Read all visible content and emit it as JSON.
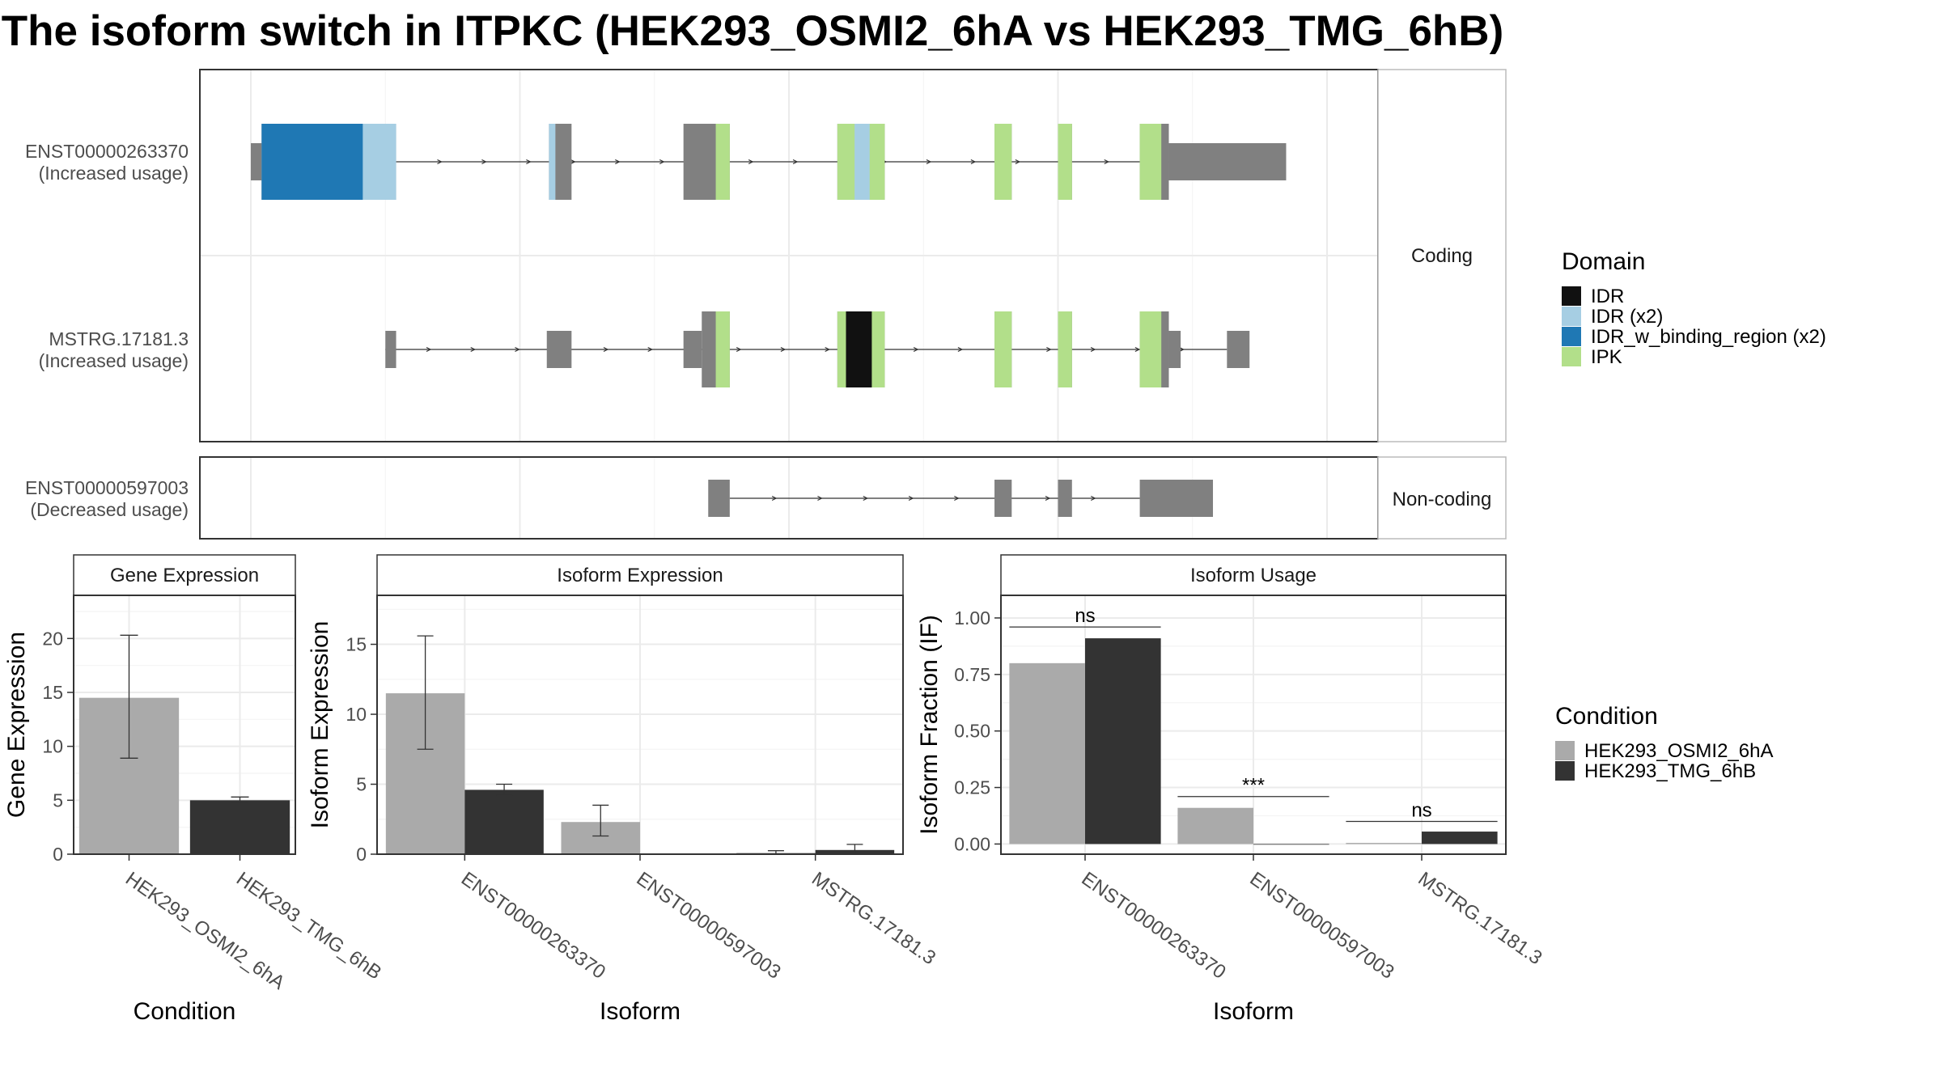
{
  "title": "The isoform switch in ITPKC (HEK293_OSMI2_6hA vs HEK293_TMG_6hB)",
  "colors": {
    "exon_grey": "#808080",
    "IDR": "#111111",
    "IDR (x2)": "#A6CEE3",
    "IDR_w_binding_region (x2)": "#1F78B4",
    "IPK": "#B2DF8A",
    "cond1": "#AAAAAA",
    "cond2": "#333333"
  },
  "legend_domain": {
    "title": "Domain",
    "items": [
      {
        "label": "IDR",
        "color": "#111111"
      },
      {
        "label": "IDR (x2)",
        "color": "#A6CEE3"
      },
      {
        "label": "IDR_w_binding_region (x2)",
        "color": "#1F78B4"
      },
      {
        "label": "IPK",
        "color": "#B2DF8A"
      }
    ]
  },
  "legend_condition": {
    "title": "Condition",
    "items": [
      {
        "label": "HEK293_OSMI2_6hA",
        "color": "#AAAAAA"
      },
      {
        "label": "HEK293_TMG_6hB",
        "color": "#333333"
      }
    ]
  },
  "chart_data": [
    {
      "type": "gene-structure",
      "strips": [
        "Coding",
        "Non-coding"
      ],
      "genomic_axis": [
        0,
        100
      ],
      "transcripts": [
        {
          "id": "ENST00000263370",
          "usage": "(Increased usage)",
          "facet": "Coding",
          "introns": [
            [
              13.5,
              92.0
            ]
          ],
          "exons": [
            {
              "start": 0.0,
              "end": 1.0,
              "cds": false
            },
            {
              "start": 1.0,
              "end": 13.5,
              "cds": true
            },
            {
              "start": 27.7,
              "end": 29.8,
              "cds": true
            },
            {
              "start": 40.2,
              "end": 44.5,
              "cds": true
            },
            {
              "start": 54.5,
              "end": 58.9,
              "cds": true
            },
            {
              "start": 69.1,
              "end": 70.7,
              "cds": true
            },
            {
              "start": 75.0,
              "end": 76.3,
              "cds": true
            },
            {
              "start": 82.6,
              "end": 85.3,
              "cds": true
            },
            {
              "start": 85.3,
              "end": 96.2,
              "cds": false
            }
          ],
          "domains": [
            {
              "start": 1.0,
              "end": 12.8,
              "type": "IDR_w_binding_region (x2)"
            },
            {
              "start": 10.4,
              "end": 13.5,
              "type": "IDR (x2)"
            },
            {
              "start": 27.7,
              "end": 28.3,
              "type": "IDR (x2)"
            },
            {
              "start": 43.2,
              "end": 44.5,
              "type": "IPK"
            },
            {
              "start": 54.5,
              "end": 58.9,
              "type": "IPK"
            },
            {
              "start": 56.1,
              "end": 57.5,
              "type": "IDR (x2)"
            },
            {
              "start": 69.1,
              "end": 70.7,
              "type": "IPK"
            },
            {
              "start": 75.0,
              "end": 76.3,
              "type": "IPK"
            },
            {
              "start": 82.6,
              "end": 84.6,
              "type": "IPK"
            }
          ]
        },
        {
          "id": "MSTRG.17181.3",
          "usage": "(Increased usage)",
          "facet": "Coding",
          "introns": [
            [
              12.5,
              90.7
            ]
          ],
          "exons": [
            {
              "start": 12.5,
              "end": 13.5,
              "cds": false
            },
            {
              "start": 27.5,
              "end": 29.8,
              "cds": false
            },
            {
              "start": 40.2,
              "end": 41.9,
              "cds": false
            },
            {
              "start": 41.9,
              "end": 44.5,
              "cds": true
            },
            {
              "start": 54.5,
              "end": 58.9,
              "cds": true
            },
            {
              "start": 69.1,
              "end": 70.7,
              "cds": true
            },
            {
              "start": 75.0,
              "end": 76.3,
              "cds": true
            },
            {
              "start": 82.6,
              "end": 85.3,
              "cds": true
            },
            {
              "start": 85.3,
              "end": 86.4,
              "cds": false
            },
            {
              "start": 90.7,
              "end": 92.8,
              "cds": false
            }
          ],
          "domains": [
            {
              "start": 43.2,
              "end": 44.5,
              "type": "IPK"
            },
            {
              "start": 54.5,
              "end": 58.9,
              "type": "IPK"
            },
            {
              "start": 55.3,
              "end": 57.7,
              "type": "IDR"
            },
            {
              "start": 69.1,
              "end": 70.7,
              "type": "IPK"
            },
            {
              "start": 75.0,
              "end": 76.3,
              "type": "IPK"
            },
            {
              "start": 82.6,
              "end": 84.6,
              "type": "IPK"
            }
          ]
        },
        {
          "id": "ENST00000597003",
          "usage": "(Decreased usage)",
          "facet": "Non-coding",
          "introns": [
            [
              44.5,
              82.6
            ]
          ],
          "exons": [
            {
              "start": 42.5,
              "end": 44.5,
              "cds": false
            },
            {
              "start": 69.1,
              "end": 70.7,
              "cds": false
            },
            {
              "start": 75.0,
              "end": 76.3,
              "cds": false
            },
            {
              "start": 82.6,
              "end": 89.4,
              "cds": false
            }
          ],
          "domains": []
        }
      ]
    },
    {
      "type": "bar",
      "title": "Gene Expression",
      "xlabel": "Condition",
      "ylabel": "Gene Expression",
      "ylim": [
        0,
        24
      ],
      "yticks": [
        0,
        5,
        10,
        15,
        20
      ],
      "categories": [
        "HEK293_OSMI2_6hA",
        "HEK293_TMG_6hB"
      ],
      "values": [
        14.5,
        5.0
      ],
      "errors": [
        [
          8.9,
          20.3
        ],
        [
          4.8,
          5.3
        ]
      ]
    },
    {
      "type": "bar",
      "title": "Isoform Expression",
      "xlabel": "Isoform",
      "ylabel": "Isoform Expression",
      "ylim": [
        0,
        18.5
      ],
      "yticks": [
        0,
        5,
        10,
        15
      ],
      "categories": [
        "ENST00000263370",
        "ENST00000597003",
        "MSTRG.17181.3"
      ],
      "series": [
        {
          "name": "HEK293_OSMI2_6hA",
          "values": [
            11.5,
            2.3,
            0.1
          ],
          "errors": [
            [
              7.5,
              15.6
            ],
            [
              1.3,
              3.5
            ],
            [
              0.0,
              0.25
            ]
          ]
        },
        {
          "name": "HEK293_TMG_6hB",
          "values": [
            4.6,
            0.0,
            0.3
          ],
          "errors": [
            [
              4.2,
              5.0
            ],
            [
              0.0,
              0.0
            ],
            [
              0.0,
              0.7
            ]
          ]
        }
      ]
    },
    {
      "type": "bar",
      "title": "Isoform Usage",
      "xlabel": "Isoform",
      "ylabel": "Isoform Fraction (IF)",
      "ylim": [
        -0.045,
        1.1
      ],
      "yticks": [
        0.0,
        0.25,
        0.5,
        0.75,
        1.0
      ],
      "ytick_labels": [
        "0.00",
        "0.25",
        "0.50",
        "0.75",
        "1.00"
      ],
      "categories": [
        "ENST00000263370",
        "ENST00000597003",
        "MSTRG.17181.3"
      ],
      "series": [
        {
          "name": "HEK293_OSMI2_6hA",
          "values": [
            0.8,
            0.16,
            0.005
          ]
        },
        {
          "name": "HEK293_TMG_6hB",
          "values": [
            0.91,
            0.0,
            0.055
          ]
        }
      ],
      "significance": [
        {
          "label": "ns",
          "y": 0.96
        },
        {
          "label": "***",
          "y": 0.21
        },
        {
          "label": "ns",
          "y": 0.1
        }
      ]
    }
  ]
}
